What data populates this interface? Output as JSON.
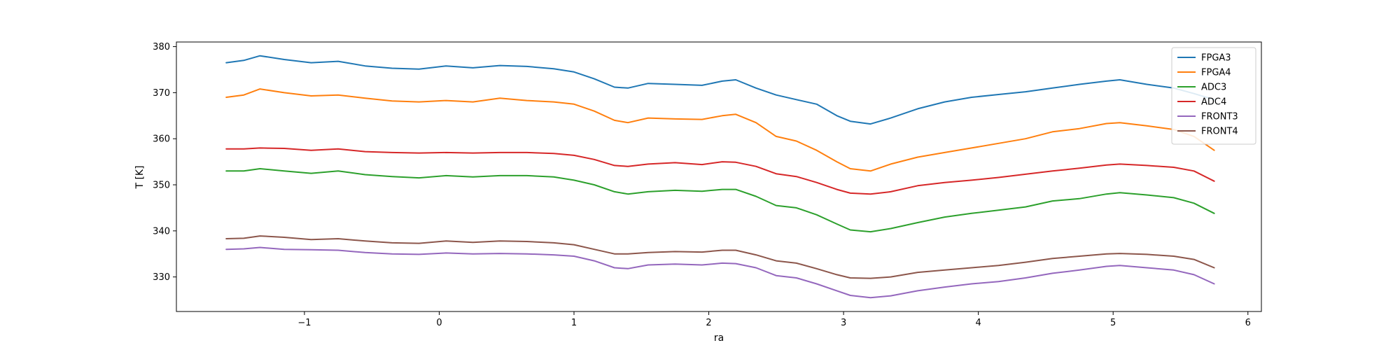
{
  "chart_data": {
    "type": "line",
    "title": "",
    "xlabel": "ra",
    "ylabel": "T [K]",
    "xlim": [
      -1.95,
      6.1
    ],
    "ylim": [
      322.5,
      381.0
    ],
    "xticks": [
      -1,
      0,
      1,
      2,
      3,
      4,
      5,
      6
    ],
    "xtick_labels": [
      "−1",
      "0",
      "1",
      "2",
      "3",
      "4",
      "5",
      "6"
    ],
    "yticks": [
      330,
      340,
      350,
      360,
      370,
      380
    ],
    "ytick_labels": [
      "330",
      "340",
      "350",
      "360",
      "370",
      "380"
    ],
    "grid": false,
    "legend": "top-right",
    "series": [
      {
        "name": "FPGA3",
        "color": "#1f77b4",
        "x": [
          -1.58,
          -1.45,
          -1.33,
          -1.15,
          -0.95,
          -0.75,
          -0.55,
          -0.35,
          -0.15,
          0.05,
          0.25,
          0.45,
          0.65,
          0.85,
          1.0,
          1.15,
          1.3,
          1.4,
          1.55,
          1.75,
          1.95,
          2.1,
          2.2,
          2.35,
          2.5,
          2.65,
          2.8,
          2.95,
          3.05,
          3.2,
          3.35,
          3.55,
          3.75,
          3.95,
          4.15,
          4.35,
          4.55,
          4.75,
          4.95,
          5.05,
          5.25,
          5.45,
          5.6,
          5.75
        ],
        "y": [
          376.5,
          377.0,
          378.0,
          377.2,
          376.5,
          376.8,
          375.8,
          375.3,
          375.1,
          375.8,
          375.4,
          375.9,
          375.7,
          375.2,
          374.5,
          373.0,
          371.2,
          371.0,
          372.0,
          371.8,
          371.6,
          372.5,
          372.8,
          371.0,
          369.5,
          368.5,
          367.5,
          365.0,
          363.8,
          363.2,
          364.5,
          366.5,
          368.0,
          369.0,
          369.6,
          370.2,
          371.0,
          371.8,
          372.5,
          372.8,
          371.8,
          371.0,
          369.8,
          368.5
        ]
      },
      {
        "name": "FPGA4",
        "color": "#ff7f0e",
        "x": [
          -1.58,
          -1.45,
          -1.33,
          -1.15,
          -0.95,
          -0.75,
          -0.55,
          -0.35,
          -0.15,
          0.05,
          0.25,
          0.45,
          0.65,
          0.85,
          1.0,
          1.15,
          1.3,
          1.4,
          1.55,
          1.75,
          1.95,
          2.1,
          2.2,
          2.35,
          2.5,
          2.65,
          2.8,
          2.95,
          3.05,
          3.2,
          3.35,
          3.55,
          3.75,
          3.95,
          4.15,
          4.35,
          4.55,
          4.75,
          4.95,
          5.05,
          5.25,
          5.45,
          5.6,
          5.75
        ],
        "y": [
          369.0,
          369.5,
          370.8,
          370.0,
          369.3,
          369.5,
          368.8,
          368.2,
          368.0,
          368.3,
          368.0,
          368.8,
          368.3,
          368.0,
          367.5,
          366.0,
          364.0,
          363.5,
          364.5,
          364.3,
          364.2,
          365.0,
          365.3,
          363.5,
          360.5,
          359.5,
          357.5,
          355.0,
          353.5,
          353.0,
          354.5,
          356.0,
          357.0,
          358.0,
          359.0,
          360.0,
          361.5,
          362.2,
          363.3,
          363.5,
          362.8,
          362.0,
          360.5,
          357.5
        ]
      },
      {
        "name": "ADC3",
        "color": "#2ca02c",
        "x": [
          -1.58,
          -1.45,
          -1.33,
          -1.15,
          -0.95,
          -0.75,
          -0.55,
          -0.35,
          -0.15,
          0.05,
          0.25,
          0.45,
          0.65,
          0.85,
          1.0,
          1.15,
          1.3,
          1.4,
          1.55,
          1.75,
          1.95,
          2.1,
          2.2,
          2.35,
          2.5,
          2.65,
          2.8,
          2.95,
          3.05,
          3.2,
          3.35,
          3.55,
          3.75,
          3.95,
          4.15,
          4.35,
          4.55,
          4.75,
          4.95,
          5.05,
          5.25,
          5.45,
          5.6,
          5.75
        ],
        "y": [
          353.0,
          353.0,
          353.5,
          353.0,
          352.5,
          353.0,
          352.2,
          351.8,
          351.5,
          352.0,
          351.7,
          352.0,
          352.0,
          351.7,
          351.0,
          350.0,
          348.5,
          348.0,
          348.5,
          348.8,
          348.6,
          349.0,
          349.0,
          347.5,
          345.5,
          345.0,
          343.5,
          341.5,
          340.2,
          339.8,
          340.5,
          341.8,
          343.0,
          343.8,
          344.5,
          345.2,
          346.5,
          347.0,
          348.0,
          348.3,
          347.8,
          347.2,
          346.0,
          343.8
        ]
      },
      {
        "name": "ADC4",
        "color": "#d62728",
        "x": [
          -1.58,
          -1.45,
          -1.33,
          -1.15,
          -0.95,
          -0.75,
          -0.55,
          -0.35,
          -0.15,
          0.05,
          0.25,
          0.45,
          0.65,
          0.85,
          1.0,
          1.15,
          1.3,
          1.4,
          1.55,
          1.75,
          1.95,
          2.1,
          2.2,
          2.35,
          2.5,
          2.65,
          2.8,
          2.95,
          3.05,
          3.2,
          3.35,
          3.55,
          3.75,
          3.95,
          4.15,
          4.35,
          4.55,
          4.75,
          4.95,
          5.05,
          5.25,
          5.45,
          5.6,
          5.75
        ],
        "y": [
          357.8,
          357.8,
          358.0,
          357.9,
          357.5,
          357.8,
          357.2,
          357.0,
          356.9,
          357.0,
          356.9,
          357.0,
          357.0,
          356.8,
          356.4,
          355.5,
          354.2,
          354.0,
          354.5,
          354.8,
          354.4,
          355.0,
          354.9,
          354.0,
          352.4,
          351.8,
          350.5,
          349.0,
          348.2,
          348.0,
          348.5,
          349.8,
          350.5,
          351.0,
          351.6,
          352.3,
          353.0,
          353.6,
          354.3,
          354.5,
          354.2,
          353.8,
          353.0,
          350.8
        ]
      },
      {
        "name": "FRONT3",
        "color": "#9467bd",
        "x": [
          -1.58,
          -1.45,
          -1.33,
          -1.15,
          -0.95,
          -0.75,
          -0.55,
          -0.35,
          -0.15,
          0.05,
          0.25,
          0.45,
          0.65,
          0.85,
          1.0,
          1.15,
          1.3,
          1.4,
          1.55,
          1.75,
          1.95,
          2.1,
          2.2,
          2.35,
          2.5,
          2.65,
          2.8,
          2.95,
          3.05,
          3.2,
          3.35,
          3.55,
          3.75,
          3.95,
          4.15,
          4.35,
          4.55,
          4.75,
          4.95,
          5.05,
          5.25,
          5.45,
          5.6,
          5.75
        ],
        "y": [
          336.0,
          336.1,
          336.4,
          336.0,
          335.9,
          335.8,
          335.3,
          335.0,
          334.9,
          335.2,
          335.0,
          335.1,
          335.0,
          334.8,
          334.5,
          333.5,
          332.0,
          331.8,
          332.6,
          332.8,
          332.6,
          333.0,
          332.9,
          332.0,
          330.3,
          329.8,
          328.5,
          327.0,
          326.0,
          325.5,
          325.9,
          327.0,
          327.8,
          328.5,
          329.0,
          329.8,
          330.8,
          331.5,
          332.3,
          332.5,
          332.0,
          331.5,
          330.5,
          328.5
        ]
      },
      {
        "name": "FRONT4",
        "color": "#8c564b",
        "x": [
          -1.58,
          -1.45,
          -1.33,
          -1.15,
          -0.95,
          -0.75,
          -0.55,
          -0.35,
          -0.15,
          0.05,
          0.25,
          0.45,
          0.65,
          0.85,
          1.0,
          1.15,
          1.3,
          1.4,
          1.55,
          1.75,
          1.95,
          2.1,
          2.2,
          2.35,
          2.5,
          2.65,
          2.8,
          2.95,
          3.05,
          3.2,
          3.35,
          3.55,
          3.75,
          3.95,
          4.15,
          4.35,
          4.55,
          4.75,
          4.95,
          5.05,
          5.25,
          5.45,
          5.6,
          5.75
        ],
        "y": [
          338.3,
          338.4,
          338.9,
          338.6,
          338.1,
          338.3,
          337.8,
          337.4,
          337.3,
          337.8,
          337.5,
          337.8,
          337.7,
          337.4,
          337.0,
          336.0,
          335.0,
          335.0,
          335.3,
          335.5,
          335.4,
          335.8,
          335.8,
          334.8,
          333.5,
          333.0,
          331.8,
          330.5,
          329.8,
          329.7,
          330.0,
          331.0,
          331.5,
          332.0,
          332.5,
          333.2,
          334.0,
          334.5,
          335.0,
          335.1,
          334.9,
          334.5,
          333.8,
          332.0
        ]
      }
    ]
  }
}
